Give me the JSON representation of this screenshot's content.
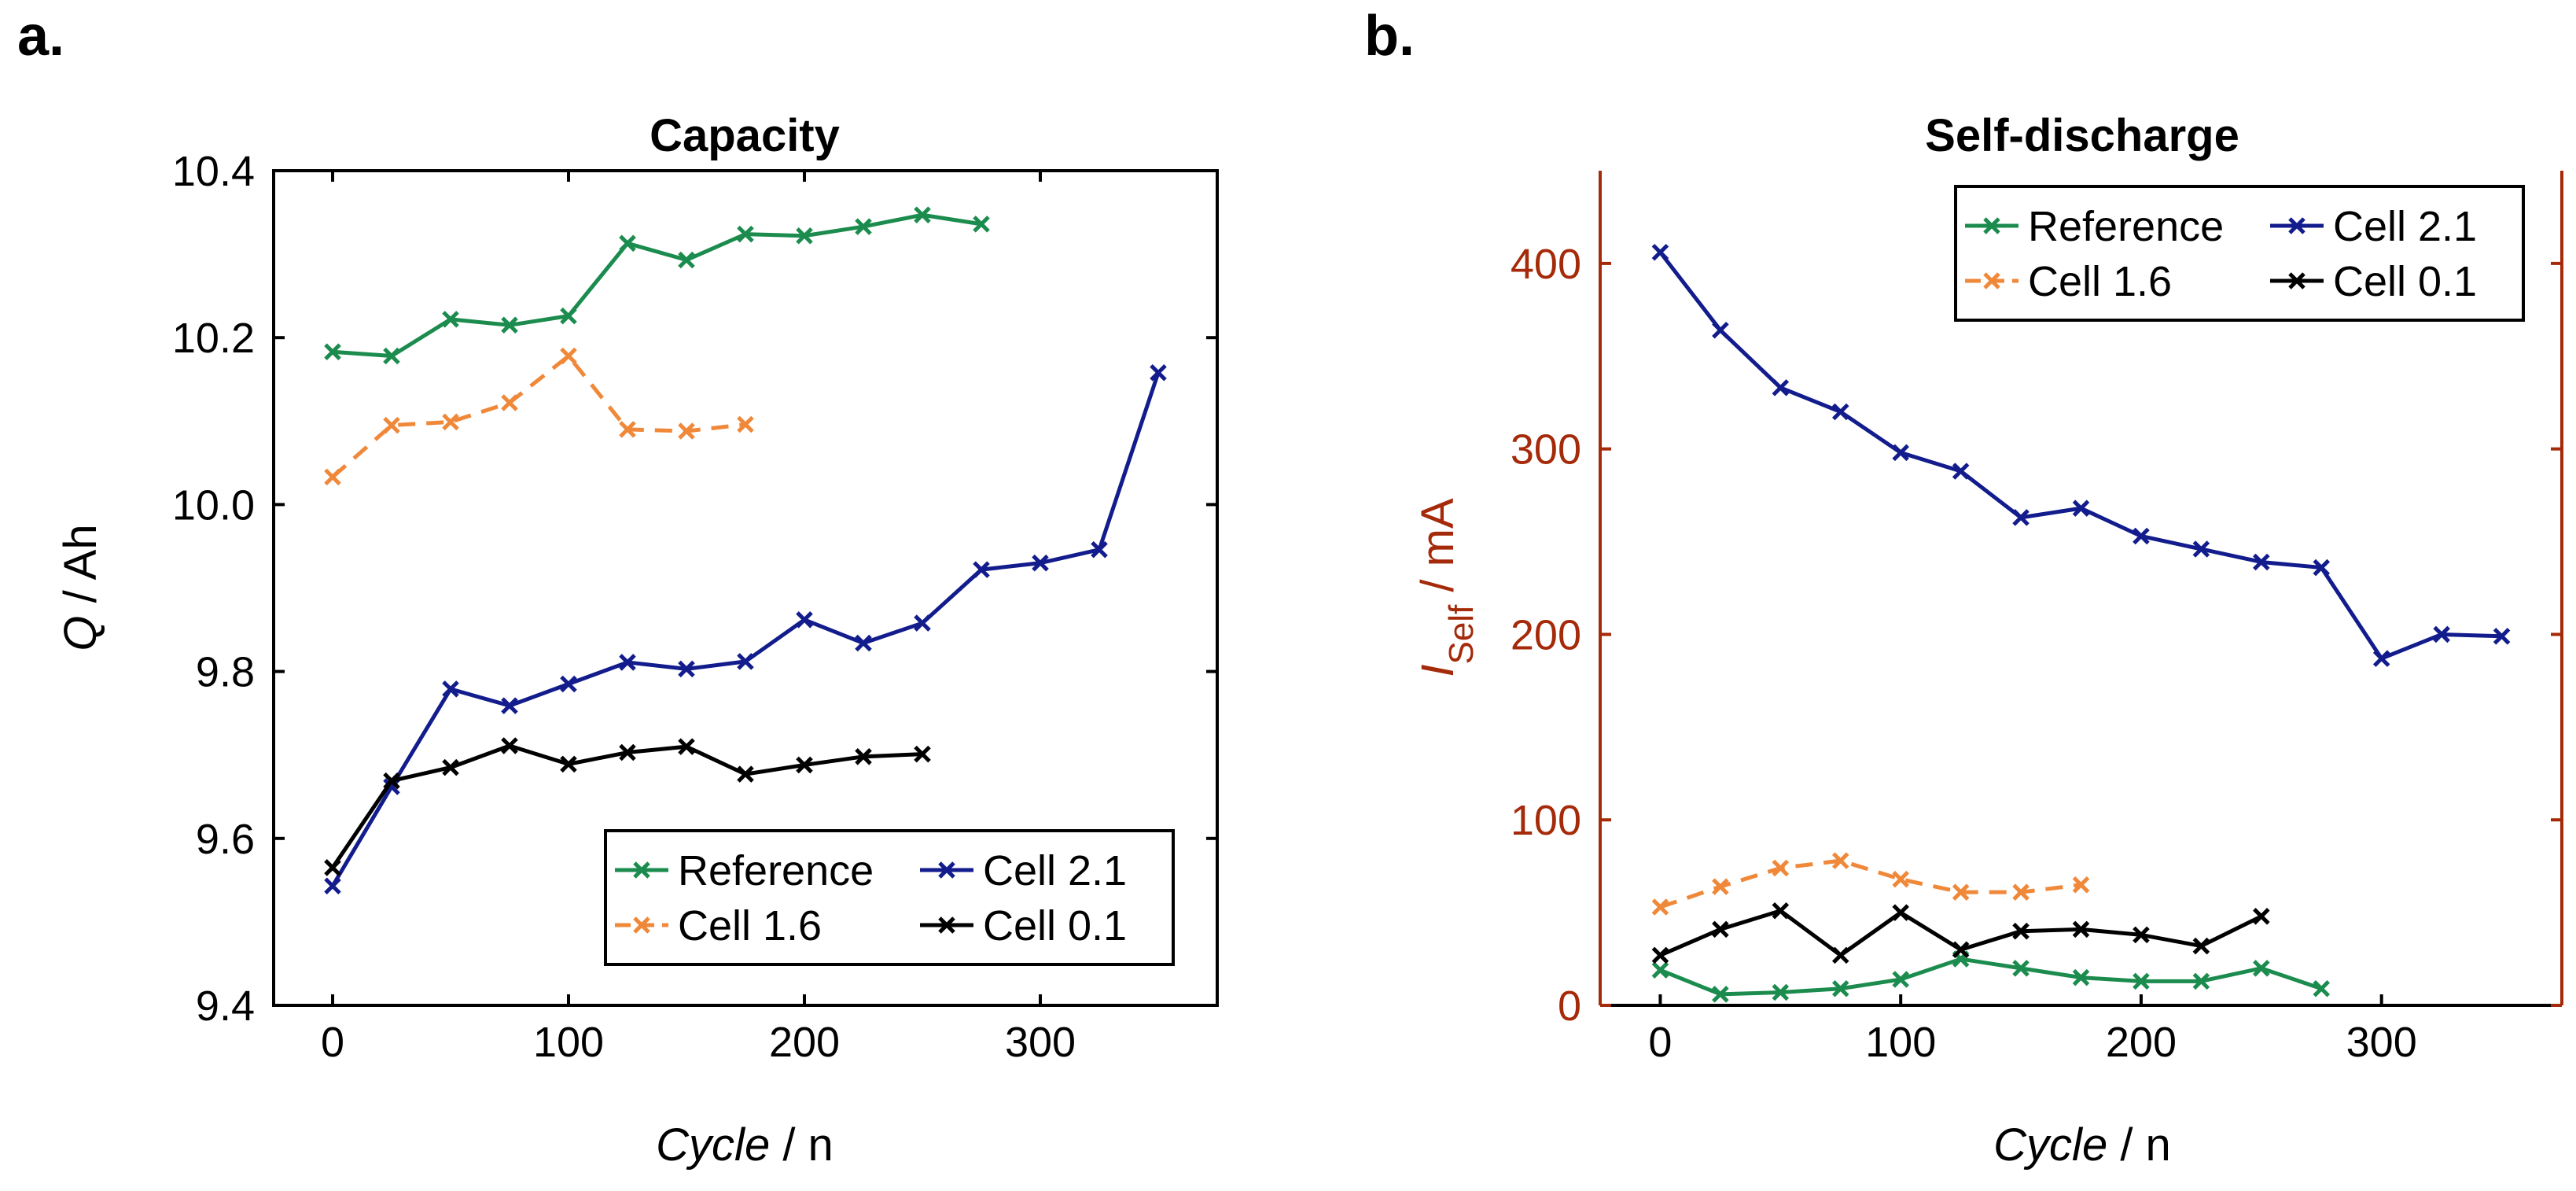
{
  "chart_data": [
    {
      "panel": "a.",
      "type": "line",
      "title": "Capacity",
      "xlabel_italic": "Cycle",
      "xlabel_rest": " / n",
      "ylabel_italic": "Q",
      "ylabel_rest": " / Ah",
      "xlim": [
        -25,
        375
      ],
      "ylim": [
        9.4,
        10.4
      ],
      "xticks": [
        0,
        100,
        200,
        300
      ],
      "yticks": [
        9.4,
        9.6,
        9.8,
        10.0,
        10.2,
        10.4
      ],
      "ytick_labels": [
        "9.4",
        "9.6",
        "9.8",
        "10.0",
        "10.2",
        "10.4"
      ],
      "ytick_color": "#000000",
      "ylabel_color": "#000000",
      "legend_position": "bottom-right",
      "series": [
        {
          "name": "Reference",
          "color": "#1b8c4e",
          "dash": false,
          "x": [
            0,
            25,
            50,
            75,
            100,
            125,
            150,
            175,
            200,
            225,
            250,
            275
          ],
          "y": [
            10.183,
            10.178,
            10.222,
            10.215,
            10.226,
            10.313,
            10.293,
            10.324,
            10.322,
            10.333,
            10.347,
            10.336
          ]
        },
        {
          "name": "Cell 2.1",
          "color": "#121c8c",
          "dash": false,
          "x": [
            0,
            25,
            50,
            75,
            100,
            125,
            150,
            175,
            200,
            225,
            250,
            275,
            300,
            325,
            350
          ],
          "y": [
            9.543,
            9.662,
            9.779,
            9.759,
            9.785,
            9.811,
            9.803,
            9.812,
            9.862,
            9.834,
            9.858,
            9.922,
            9.93,
            9.946,
            10.158
          ]
        },
        {
          "name": "Cell 1.6",
          "color": "#f0883a",
          "dash": true,
          "x": [
            0,
            25,
            50,
            75,
            100,
            125,
            150,
            175
          ],
          "y": [
            10.033,
            10.095,
            10.099,
            10.122,
            10.178,
            10.09,
            10.088,
            10.096
          ]
        },
        {
          "name": "Cell 0.1",
          "color": "#000000",
          "dash": false,
          "x": [
            0,
            25,
            50,
            75,
            100,
            125,
            150,
            175,
            200,
            225,
            250
          ],
          "y": [
            9.565,
            9.669,
            9.685,
            9.711,
            9.689,
            9.703,
            9.71,
            9.677,
            9.688,
            9.698,
            9.701
          ]
        }
      ]
    },
    {
      "panel": "b.",
      "type": "line",
      "title": "Self-discharge",
      "xlabel_italic": "Cycle",
      "xlabel_rest": " / n",
      "ylabel_italic": "I",
      "ylabel_sub": "Self",
      "ylabel_rest": " / mA",
      "xlim": [
        -25,
        375
      ],
      "ylim": [
        0,
        450
      ],
      "xticks": [
        0,
        100,
        200,
        300
      ],
      "yticks": [
        0,
        100,
        200,
        300,
        400
      ],
      "ytick_labels": [
        "0",
        "100",
        "200",
        "300",
        "400"
      ],
      "ytick_color": "#a52a0a",
      "ylabel_color": "#a52a0a",
      "legend_position": "top-right",
      "series": [
        {
          "name": "Reference",
          "color": "#1b8c4e",
          "dash": false,
          "x": [
            0,
            25,
            50,
            75,
            100,
            125,
            150,
            175,
            200,
            225,
            250,
            275
          ],
          "y": [
            19,
            6,
            7,
            9,
            14,
            25,
            20,
            15,
            13,
            13,
            20,
            9
          ]
        },
        {
          "name": "Cell 2.1",
          "color": "#121c8c",
          "dash": false,
          "x": [
            0,
            25,
            50,
            75,
            100,
            125,
            150,
            175,
            200,
            225,
            250,
            275,
            300,
            325,
            350
          ],
          "y": [
            406,
            364,
            333,
            320,
            298,
            288,
            263,
            268,
            253,
            246,
            239,
            236,
            187,
            200,
            199
          ]
        },
        {
          "name": "Cell 1.6",
          "color": "#f0883a",
          "dash": true,
          "x": [
            0,
            25,
            50,
            75,
            100,
            125,
            150,
            175
          ],
          "y": [
            53,
            64,
            74,
            78,
            68,
            61,
            61,
            65
          ]
        },
        {
          "name": "Cell 0.1",
          "color": "#000000",
          "dash": false,
          "x": [
            0,
            25,
            50,
            75,
            100,
            125,
            150,
            175,
            200,
            225,
            250
          ],
          "y": [
            27,
            41,
            51,
            27,
            50,
            30,
            40,
            41,
            38,
            32,
            48
          ]
        }
      ]
    }
  ]
}
